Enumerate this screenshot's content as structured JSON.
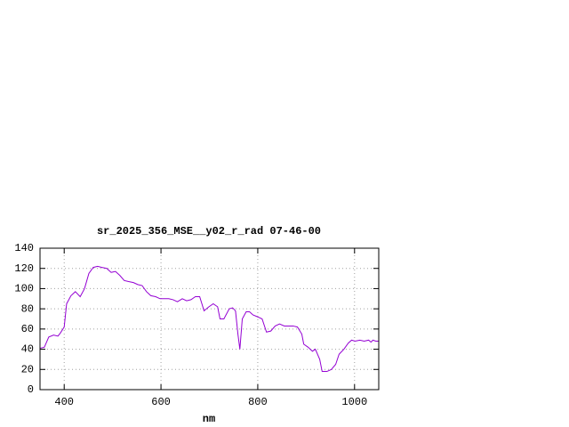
{
  "chart_data": {
    "type": "line",
    "title": "sr_2025_356_MSE__y02_r_rad 07-46-00",
    "x_label": "nm",
    "x": [
      350,
      359,
      368,
      378,
      387,
      392,
      400,
      405,
      414,
      423,
      433,
      442,
      451,
      460,
      469,
      478,
      488,
      497,
      506,
      515,
      524,
      533,
      543,
      552,
      561,
      570,
      579,
      589,
      598,
      607,
      616,
      625,
      634,
      644,
      653,
      662,
      671,
      680,
      689,
      699,
      708,
      717,
      722,
      730,
      741,
      748,
      754,
      759,
      763,
      768,
      776,
      783,
      790,
      800,
      809,
      818,
      827,
      836,
      845,
      855,
      864,
      873,
      882,
      891,
      895,
      904,
      913,
      919,
      928,
      933,
      943,
      952,
      961,
      968,
      978,
      987,
      994,
      1001,
      1011,
      1020,
      1029,
      1034,
      1038,
      1044,
      1049
    ],
    "series": [
      {
        "color": "#9400d3",
        "values": [
          41,
          42,
          52,
          54,
          53,
          56,
          62,
          85,
          93,
          97,
          92,
          100,
          115,
          121,
          122,
          121,
          120,
          116,
          117,
          113,
          108,
          107,
          106,
          104,
          103,
          97,
          93,
          92,
          90,
          90,
          90,
          89,
          87,
          90,
          88,
          89,
          92,
          92,
          78,
          82,
          85,
          82,
          70,
          70,
          80,
          81,
          78,
          55,
          40,
          70,
          77,
          77,
          74,
          72,
          70,
          57,
          58,
          63,
          65,
          63,
          63,
          63,
          62,
          55,
          45,
          42,
          38,
          40,
          30,
          18,
          18,
          20,
          25,
          35,
          40,
          46,
          49,
          48,
          49,
          48,
          49,
          47,
          49,
          48,
          48
        ]
      }
    ],
    "xlim": [
      350,
      1050
    ],
    "ylim": [
      0,
      140
    ],
    "xticks": [
      400,
      600,
      800,
      1000
    ],
    "yticks": [
      0,
      20,
      40,
      60,
      80,
      100,
      120,
      140
    ],
    "grid": true
  }
}
